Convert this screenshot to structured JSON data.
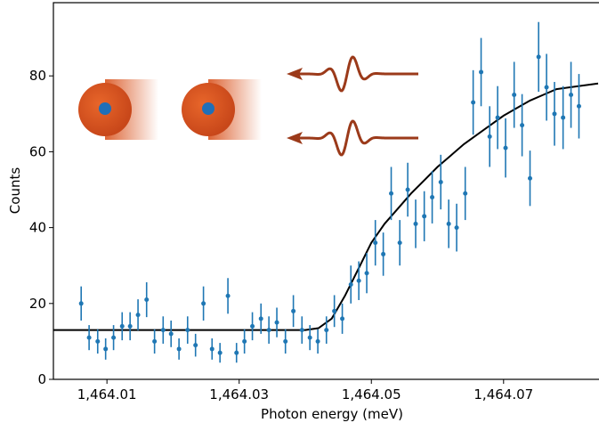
{
  "chart_data": {
    "type": "scatter",
    "xlabel": "Photon energy (meV)",
    "ylabel": "Counts",
    "xlim": [
      1464.0019,
      1464.0843
    ],
    "ylim": [
      0,
      99.3
    ],
    "xticks": [
      {
        "value": 1464.01,
        "label": "1,464.01"
      },
      {
        "value": 1464.03,
        "label": "1,464.03"
      },
      {
        "value": 1464.05,
        "label": "1,464.05"
      },
      {
        "value": 1464.07,
        "label": "1,464.07"
      }
    ],
    "yticks": [
      0,
      20,
      40,
      60,
      80
    ],
    "x": [
      1464.0061,
      1464.0073,
      1464.0086,
      1464.0098,
      1464.011,
      1464.0123,
      1464.0135,
      1464.0147,
      1464.016,
      1464.0172,
      1464.0185,
      1464.0197,
      1464.0209,
      1464.0222,
      1464.0234,
      1464.0246,
      1464.0259,
      1464.0271,
      1464.0283,
      1464.0296,
      1464.0308,
      1464.032,
      1464.0333,
      1464.0345,
      1464.0357,
      1464.037,
      1464.0382,
      1464.0395,
      1464.0407,
      1464.0419,
      1464.0432,
      1464.0444,
      1464.0456,
      1464.0469,
      1464.0481,
      1464.0493,
      1464.0506,
      1464.0518,
      1464.053,
      1464.0543,
      1464.0555,
      1464.0567,
      1464.058,
      1464.0592,
      1464.0605,
      1464.0617,
      1464.0629,
      1464.0642,
      1464.0654,
      1464.0666,
      1464.0679,
      1464.0691,
      1464.0703,
      1464.0716,
      1464.0728,
      1464.074,
      1464.0753,
      1464.0765,
      1464.0777,
      1464.079,
      1464.0802,
      1464.0814
    ],
    "series": [
      {
        "color": "#1f77b4",
        "values": [
          20,
          11,
          10,
          8,
          11,
          14,
          14,
          17,
          21,
          10,
          13,
          12,
          8,
          13,
          9,
          20,
          8,
          7,
          22,
          7,
          10,
          14,
          16,
          13,
          15,
          10,
          18,
          13,
          11,
          10,
          13,
          18,
          16,
          25,
          26,
          28,
          36,
          33,
          49,
          36,
          50,
          41,
          43,
          48,
          52,
          41,
          40,
          49,
          73,
          81,
          64,
          69,
          61,
          75,
          67,
          53,
          85,
          77,
          70,
          69,
          75,
          72
        ],
        "errors": [
          4.5,
          3.3,
          3.2,
          2.8,
          3.3,
          3.7,
          3.7,
          4.1,
          4.6,
          3.2,
          3.6,
          3.5,
          2.8,
          3.6,
          3,
          4.5,
          2.8,
          2.6,
          4.7,
          2.6,
          3.2,
          3.7,
          4,
          3.6,
          3.9,
          3.2,
          4.2,
          3.6,
          3.3,
          3.2,
          3.6,
          4.2,
          4,
          5,
          5.1,
          5.3,
          6,
          5.7,
          7,
          6,
          7.1,
          6.4,
          6.6,
          6.9,
          7.2,
          6.4,
          6.3,
          7,
          8.5,
          9,
          8,
          8.3,
          7.8,
          8.7,
          8.2,
          7.3,
          9.2,
          8.8,
          8.4,
          8.3,
          8.7,
          8.5
        ]
      }
    ],
    "fit": {
      "color": "#000000",
      "x": [
        1464.0019,
        1464.04,
        1464.042,
        1464.044,
        1464.046,
        1464.048,
        1464.05,
        1464.052,
        1464.054,
        1464.056,
        1464.058,
        1464.06,
        1464.062,
        1464.064,
        1464.066,
        1464.068,
        1464.07,
        1464.072,
        1464.074,
        1464.076,
        1464.078,
        1464.0843
      ],
      "values": [
        13,
        13,
        13.5,
        16,
        22,
        29,
        36,
        41,
        45,
        49,
        52.5,
        56,
        59,
        62,
        64.5,
        67,
        69.5,
        71.5,
        73.5,
        75,
        76.5,
        78
      ]
    }
  }
}
